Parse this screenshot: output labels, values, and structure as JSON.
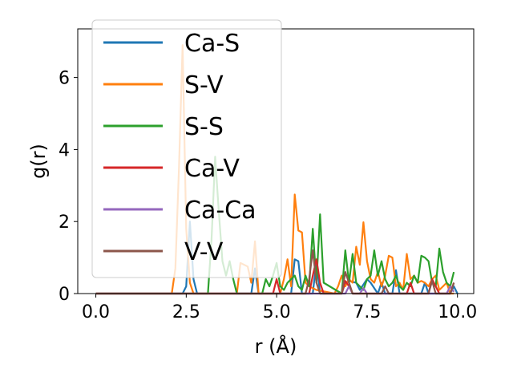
{
  "chart_data": {
    "type": "line",
    "title": "",
    "xlabel": "r (Å)",
    "ylabel": "g(r)",
    "xlim": [
      -0.5,
      10.45
    ],
    "ylim": [
      0,
      7.35
    ],
    "xticks": [
      0.0,
      2.5,
      5.0,
      7.5,
      10.0
    ],
    "xtick_labels": [
      "0.0",
      "2.5",
      "5.0",
      "7.5",
      "10.0"
    ],
    "yticks": [
      0,
      2,
      4,
      6
    ],
    "ytick_labels": [
      "0",
      "2",
      "4",
      "6"
    ],
    "grid": false,
    "legend_position": "upper left",
    "series": [
      {
        "name": "Ca-S",
        "color": "#1f77b4",
        "x": [
          0,
          2.4,
          2.5,
          2.6,
          2.7,
          2.8,
          4.3,
          4.4,
          4.5,
          5.0,
          5.4,
          5.5,
          5.6,
          5.7,
          6.0,
          6.1,
          6.2,
          6.8,
          6.9,
          7.0,
          7.2,
          7.3,
          7.5,
          7.6,
          7.8,
          7.9,
          8.0,
          8.2,
          8.3,
          8.4,
          9.0,
          9.1,
          9.2,
          9.8,
          9.9,
          10.0
        ],
        "y": [
          0,
          0,
          0.2,
          2.0,
          0.4,
          0,
          0,
          0.7,
          0,
          0,
          0,
          0.95,
          0.9,
          0,
          0,
          0.9,
          0,
          0,
          0.3,
          0.35,
          0.3,
          0.1,
          0.4,
          0.3,
          0,
          0.3,
          0,
          0,
          0.65,
          0,
          0,
          0.3,
          0,
          0,
          0.2,
          0
        ]
      },
      {
        "name": "S-V",
        "color": "#ff7f0e",
        "x": [
          0,
          2.1,
          2.2,
          2.3,
          2.4,
          2.5,
          2.6,
          2.7,
          3.9,
          4.0,
          4.2,
          4.3,
          4.4,
          4.5,
          5.1,
          5.2,
          5.3,
          5.4,
          5.5,
          5.6,
          5.7,
          5.8,
          5.9,
          6.0,
          6.1,
          6.6,
          6.7,
          6.8,
          6.9,
          7.0,
          7.1,
          7.2,
          7.3,
          7.4,
          7.5,
          7.6,
          7.7,
          7.8,
          7.9,
          8.0,
          8.1,
          8.2,
          8.3,
          8.4,
          8.5,
          8.6,
          8.7,
          8.8,
          8.9,
          9.0,
          9.1,
          9.2,
          9.3,
          9.4,
          9.5,
          9.6,
          9.7,
          9.8,
          9.9
        ],
        "y": [
          0,
          0,
          0.7,
          3.5,
          6.9,
          1.8,
          0.3,
          0,
          0,
          0.85,
          0.75,
          0.3,
          1.45,
          0,
          0,
          0.4,
          0.95,
          0.2,
          2.75,
          1.75,
          1.7,
          0.3,
          0.2,
          0.15,
          0.1,
          0,
          0.2,
          0.5,
          0.2,
          0.4,
          0.3,
          1.3,
          0.8,
          1.98,
          0.9,
          0.4,
          0.3,
          0.6,
          0.2,
          0.5,
          1.05,
          1.0,
          0.2,
          0.3,
          0.1,
          1.1,
          0.4,
          0.5,
          0.3,
          0.35,
          0.3,
          0.2,
          0.4,
          0.5,
          0.1,
          0.2,
          0.3,
          0,
          0
        ]
      },
      {
        "name": "S-S",
        "color": "#2ca02c",
        "x": [
          0,
          3.1,
          3.2,
          3.3,
          3.4,
          3.5,
          3.6,
          3.7,
          3.8,
          3.9,
          4.0,
          4.1,
          4.6,
          4.7,
          4.8,
          4.9,
          5.0,
          5.1,
          5.2,
          5.3,
          5.4,
          5.5,
          5.6,
          5.7,
          5.8,
          5.9,
          6.0,
          6.1,
          6.2,
          6.3,
          6.8,
          6.9,
          7.0,
          7.1,
          7.2,
          7.3,
          7.4,
          7.5,
          7.6,
          7.7,
          7.8,
          7.9,
          8.0,
          8.1,
          8.2,
          8.3,
          8.4,
          8.5,
          8.6,
          8.7,
          8.8,
          8.9,
          9.0,
          9.1,
          9.2,
          9.3,
          9.4,
          9.5,
          9.6,
          9.7,
          9.8,
          9.9
        ],
        "y": [
          0,
          0,
          1.5,
          3.8,
          2.3,
          0.9,
          0.5,
          0.9,
          0.4,
          0,
          0,
          0,
          0,
          0.4,
          0.2,
          0.5,
          0.85,
          0.2,
          0.1,
          0.3,
          0.4,
          0.5,
          0.2,
          0.1,
          0.5,
          0.2,
          1.8,
          0.3,
          2.2,
          0.3,
          0,
          1.2,
          0.3,
          1.1,
          0.3,
          0.2,
          0.1,
          0.4,
          0.5,
          1.2,
          0.5,
          0.9,
          0.4,
          0.2,
          0.3,
          0.5,
          0.2,
          0.1,
          0.3,
          0.2,
          0.5,
          0.3,
          1.05,
          1.0,
          0.9,
          0.3,
          0.2,
          1.25,
          0.6,
          0.3,
          0.2,
          0.6
        ]
      },
      {
        "name": "Ca-V",
        "color": "#d62728",
        "x": [
          0,
          4.9,
          5.0,
          5.1,
          5.9,
          6.0,
          6.1,
          6.2,
          6.3,
          6.8,
          6.9,
          7.0,
          7.1,
          8.6,
          8.7,
          8.8,
          9.2,
          9.3,
          9.4,
          9.5,
          9.8,
          9.9
        ],
        "y": [
          0,
          0,
          0.4,
          0,
          0,
          0.5,
          0.95,
          0.3,
          0,
          0,
          0.35,
          0.2,
          0,
          0,
          0.3,
          0,
          0,
          0.4,
          0.2,
          0,
          0,
          0.3
        ]
      },
      {
        "name": "Ca-Ca",
        "color": "#9467bd",
        "x": [
          0,
          6.9,
          7.0,
          7.1,
          7.3,
          7.4,
          7.5,
          9.7,
          9.8,
          9.9
        ],
        "y": [
          0,
          0,
          0.2,
          0,
          0,
          0.15,
          0,
          0,
          0.2,
          0.05
        ]
      },
      {
        "name": "V-V",
        "color": "#8c564b",
        "x": [
          0,
          5.8,
          5.9,
          6.0,
          6.1,
          6.2,
          6.8,
          6.9,
          7.0,
          7.1,
          7.9,
          8.0,
          8.1,
          9.2,
          9.3,
          9.4,
          9.8,
          9.9
        ],
        "y": [
          0,
          0,
          0.4,
          1.2,
          0.3,
          0,
          0,
          0.6,
          0.3,
          0,
          0,
          0.2,
          0,
          0,
          0.35,
          0,
          0,
          0.3
        ]
      }
    ]
  }
}
